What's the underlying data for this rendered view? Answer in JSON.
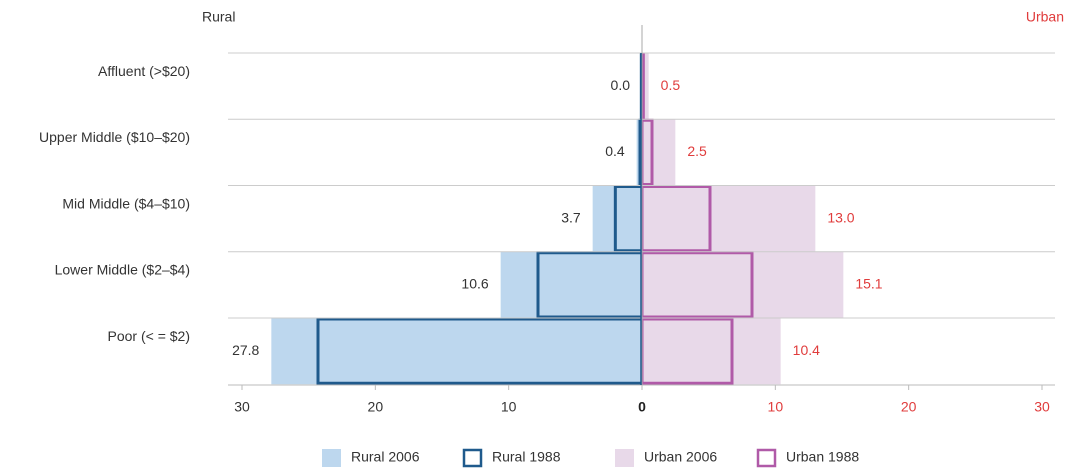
{
  "chart_data": {
    "type": "pyramid",
    "x_label": "Rural",
    "x2_label": "Urban",
    "categories": [
      "Affluent (>$20)",
      "Upper Middle ($10–$20)",
      "Mid Middle ($4–$10)",
      "Lower Middle ($2–$4)",
      "Poor (< = $2)"
    ],
    "xlim": [
      0,
      30
    ],
    "xticks": [
      0,
      10,
      20,
      30
    ],
    "x2lim": [
      0,
      30
    ],
    "x2ticks": [
      10,
      20,
      30
    ],
    "series": [
      {
        "name": "Rural 2006",
        "axis": "x",
        "style": "fill",
        "color": "#bdd7ee",
        "values": [
          0,
          0.4,
          3.7,
          10.6,
          27.8
        ],
        "value_labels": [
          "0.0",
          "0.4",
          "3.7",
          "10.6",
          "27.8"
        ]
      },
      {
        "name": "Rural 1988",
        "axis": "x",
        "style": "outline",
        "color": "#1f5a8c",
        "values": [
          0.05,
          0.15,
          2.0,
          7.8,
          24.3
        ]
      },
      {
        "name": "Urban 2006",
        "axis": "x2",
        "style": "fill",
        "color": "#e8d9e9",
        "values": [
          0.5,
          2.5,
          13.0,
          15.1,
          10.4
        ],
        "value_labels": [
          "0.5",
          "2.5",
          "13.0",
          "15.1",
          "10.4"
        ]
      },
      {
        "name": "Urban 1988",
        "axis": "x2",
        "style": "outline",
        "color": "#b05aa8",
        "values": [
          0.1,
          0.75,
          5.1,
          8.25,
          6.75
        ]
      }
    ],
    "x2_color": "#e03c3c",
    "grid": true
  }
}
